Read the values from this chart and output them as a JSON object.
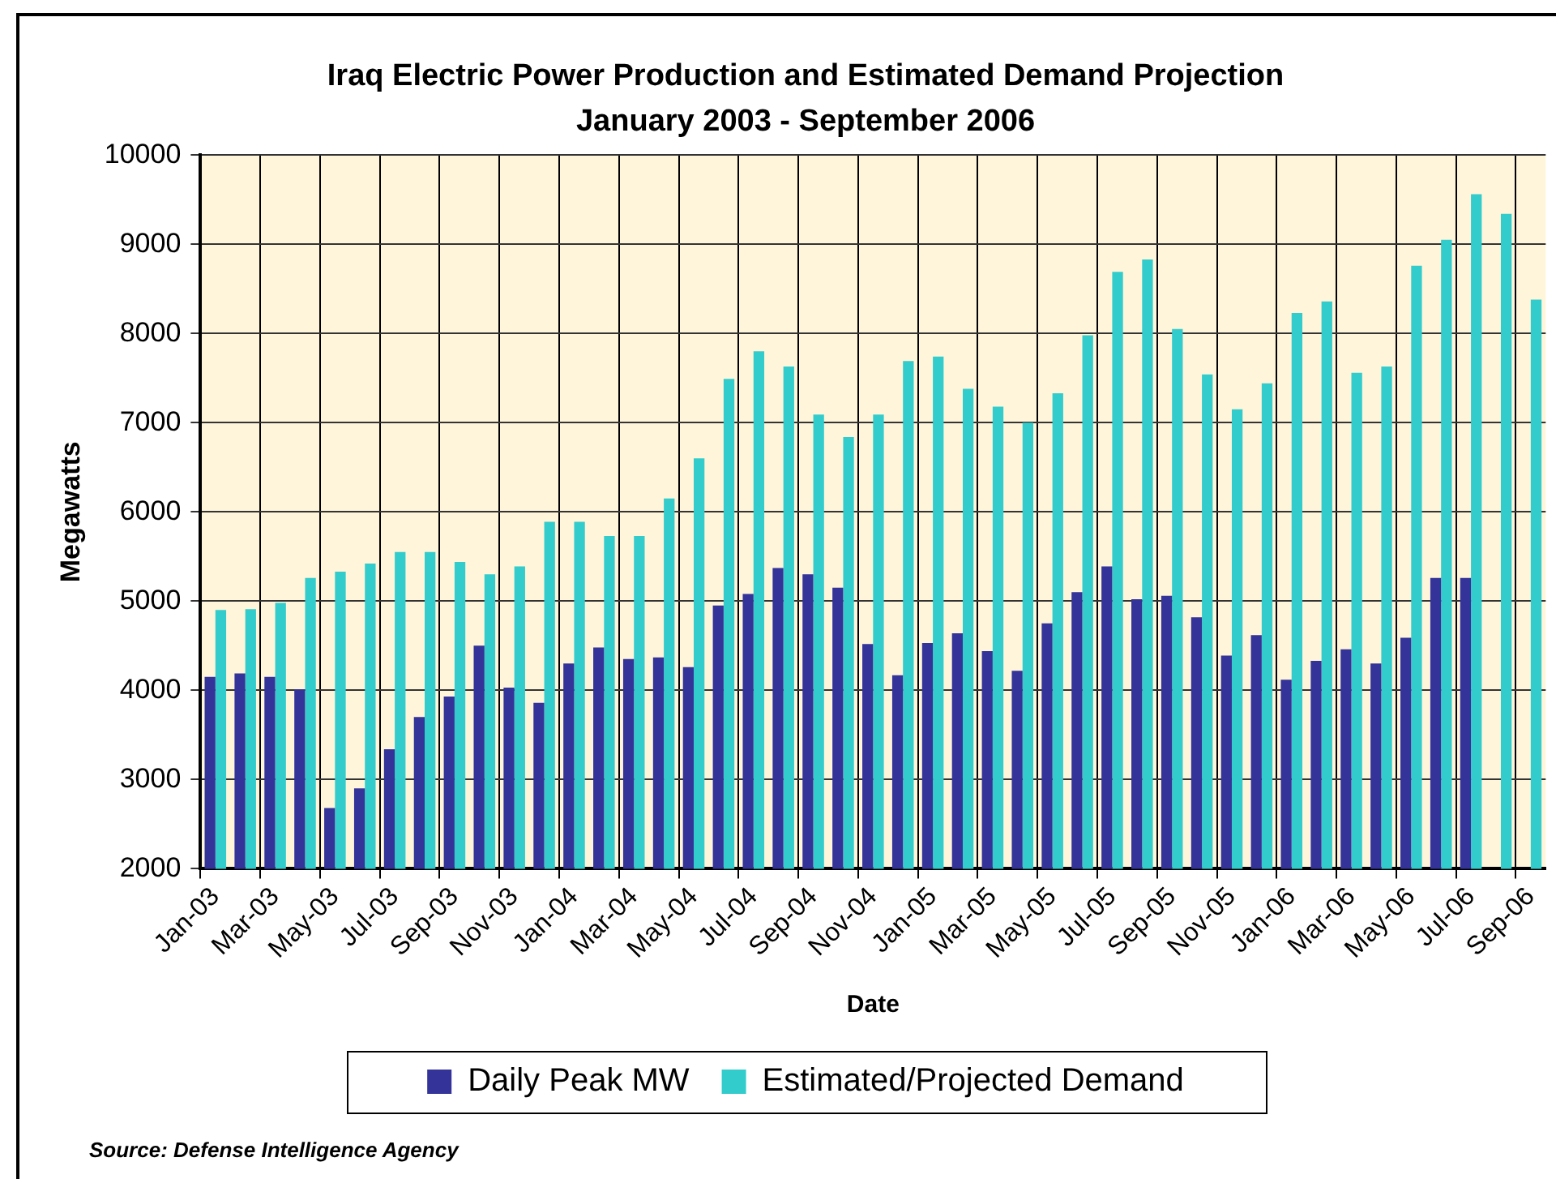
{
  "chart_data": {
    "type": "bar",
    "title": "Iraq Electric Power Production and Estimated Demand Projection",
    "subtitle": "January 2003 - September 2006",
    "xlabel": "Date",
    "ylabel": "Megawatts",
    "categories": [
      "Jan-03",
      null,
      "Mar-03",
      null,
      "May-03",
      null,
      "Jul-03",
      null,
      "Sep-03",
      null,
      "Nov-03",
      null,
      "Jan-04",
      null,
      "Mar-04",
      null,
      "May-04",
      null,
      "Jul-04",
      null,
      "Sep-04",
      null,
      "Nov-04",
      null,
      "Jan-05",
      null,
      "Mar-05",
      null,
      "May-05",
      null,
      "Jul-05",
      null,
      "Sep-05",
      null,
      "Nov-05",
      null,
      "Jan-06",
      null,
      "Mar-06",
      null,
      "May-06",
      null,
      "Jul-06",
      null,
      "Sep-06"
    ],
    "series": [
      {
        "name": "Daily Peak MW",
        "color": "#333399",
        "values": [
          4150,
          4190,
          4150,
          4010,
          2680,
          2900,
          3340,
          3700,
          3930,
          4500,
          4030,
          3860,
          4300,
          4480,
          4350,
          4370,
          4260,
          4950,
          5080,
          5370,
          5300,
          5150,
          4520,
          4170,
          4530,
          4640,
          4440,
          4220,
          4750,
          5100,
          5390,
          5020,
          5060,
          4820,
          4390,
          4620,
          4120,
          4330,
          4460,
          4300,
          4590,
          5260,
          5260,
          null,
          null
        ]
      },
      {
        "name": "Estimated/Projected Demand",
        "color": "#33cccc",
        "values": [
          4900,
          4910,
          4980,
          5260,
          5330,
          5420,
          5550,
          5550,
          5440,
          5300,
          5390,
          5890,
          5890,
          5730,
          5730,
          6150,
          6600,
          7490,
          7800,
          7630,
          7090,
          6840,
          7090,
          7690,
          7740,
          7380,
          7180,
          7000,
          7330,
          7980,
          8690,
          8830,
          8050,
          7540,
          7150,
          7440,
          8230,
          8360,
          7560,
          7630,
          8760,
          9050,
          9560,
          9340,
          8380
        ]
      }
    ],
    "ylim": [
      2000,
      10000
    ],
    "yticks": [
      2000,
      3000,
      4000,
      5000,
      6000,
      7000,
      8000,
      9000,
      10000
    ],
    "grid": true,
    "legend": "bottom",
    "annotations": [
      "Source: Defense Intelligence Agency"
    ]
  }
}
